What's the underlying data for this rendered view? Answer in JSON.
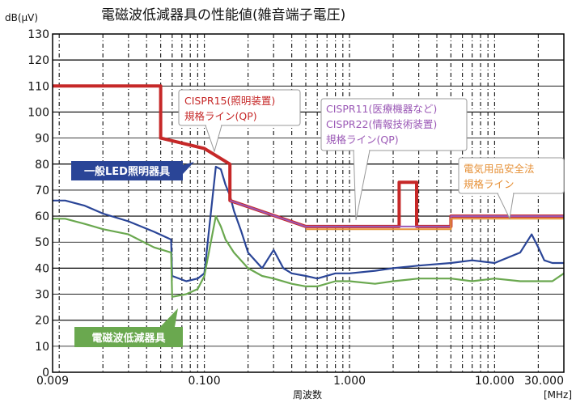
{
  "chart_data": {
    "type": "line",
    "title": "電磁波低減器具の性能値(雑音端子電圧)",
    "ylabel": "dB(μV)",
    "xlabel": "周波数",
    "xunit": "[MHz]",
    "xscale": "log",
    "xlim": [
      0.009,
      30
    ],
    "ylim": [
      0,
      130
    ],
    "grid": true,
    "yticks": [
      0,
      10,
      20,
      30,
      40,
      50,
      60,
      70,
      80,
      90,
      100,
      110,
      120,
      130
    ],
    "xticks": [
      {
        "value": 0.009,
        "label": "0.009"
      },
      {
        "value": 0.1,
        "label": "0.100"
      },
      {
        "value": 1,
        "label": "1.000"
      },
      {
        "value": 10,
        "label": "10.000"
      },
      {
        "value": 30,
        "label": "30.000"
      }
    ],
    "series": [
      {
        "name": "一般LED照明器具",
        "color": "#2a4597",
        "x": [
          0.009,
          0.011,
          0.015,
          0.02,
          0.03,
          0.045,
          0.059,
          0.06,
          0.075,
          0.09,
          0.1,
          0.12,
          0.13,
          0.14,
          0.15,
          0.16,
          0.18,
          0.2,
          0.25,
          0.3,
          0.35,
          0.4,
          0.5,
          0.6,
          0.8,
          1,
          1.5,
          2,
          3,
          5,
          7,
          10,
          15,
          18,
          20,
          22,
          25,
          30
        ],
        "y": [
          66,
          66,
          64,
          61,
          58,
          54,
          51,
          37,
          35,
          36,
          38,
          79,
          78,
          72,
          68,
          62,
          54,
          46,
          40,
          47,
          40,
          38,
          37,
          36,
          38,
          38,
          39,
          40,
          41,
          42,
          43,
          42,
          46,
          53,
          48,
          43,
          42,
          42
        ]
      },
      {
        "name": "電磁波低減器具",
        "color": "#6aa84f",
        "x": [
          0.009,
          0.011,
          0.015,
          0.02,
          0.03,
          0.045,
          0.059,
          0.06,
          0.075,
          0.09,
          0.1,
          0.12,
          0.13,
          0.14,
          0.16,
          0.2,
          0.25,
          0.3,
          0.4,
          0.5,
          0.6,
          0.8,
          1,
          1.5,
          2,
          3,
          5,
          7,
          10,
          15,
          20,
          25,
          30
        ],
        "y": [
          59,
          59,
          57,
          55,
          53,
          48,
          46,
          29,
          30,
          32,
          37,
          60,
          56,
          51,
          46,
          40,
          37,
          36,
          34,
          33,
          33,
          35,
          35,
          34,
          35,
          36,
          36,
          35,
          36,
          35,
          35,
          35,
          38
        ]
      },
      {
        "name": "CISPR15(照明装置) 規格ライン(QP)",
        "color": "#c62828",
        "x": [
          0.009,
          0.05,
          0.05,
          0.1,
          0.15,
          0.15,
          0.5,
          2.2,
          2.2,
          2.9,
          2.9,
          5,
          5,
          30
        ],
        "y": [
          110,
          110,
          90,
          86,
          80,
          66,
          56,
          56,
          73,
          73,
          56,
          56,
          60,
          60
        ]
      },
      {
        "name": "CISPR11(医療機器など) CISPR22(情報技術装置) 規格ライン(QP)",
        "color": "#9b59b6",
        "x": [
          0.15,
          0.5,
          5,
          5,
          30
        ],
        "y": [
          66,
          56,
          56,
          60,
          60
        ]
      },
      {
        "name": "電気用品安全法 規格ライン",
        "color": "#e69138",
        "x": [
          0.5,
          5,
          5,
          30
        ],
        "y": [
          55,
          55,
          59,
          59
        ]
      }
    ],
    "annotations": [
      {
        "text": "一般LED照明器具",
        "style": "filled",
        "color": "#2a4597"
      },
      {
        "text": "電磁波低減器具",
        "style": "filled",
        "color": "#6aa84f"
      },
      {
        "text": "CISPR15(照明装置)",
        "text2": "規格ライン(QP)",
        "style": "outlined",
        "color": "#c62828"
      },
      {
        "text": "CISPR11(医療機器など)",
        "text2": "CISPR22(情報技術装置)",
        "text3": "規格ライン(QP)",
        "style": "outlined",
        "color": "#9b59b6"
      },
      {
        "text": "電気用品安全法",
        "text2": "規格ライン",
        "style": "outlined",
        "color": "#e69138"
      }
    ]
  }
}
